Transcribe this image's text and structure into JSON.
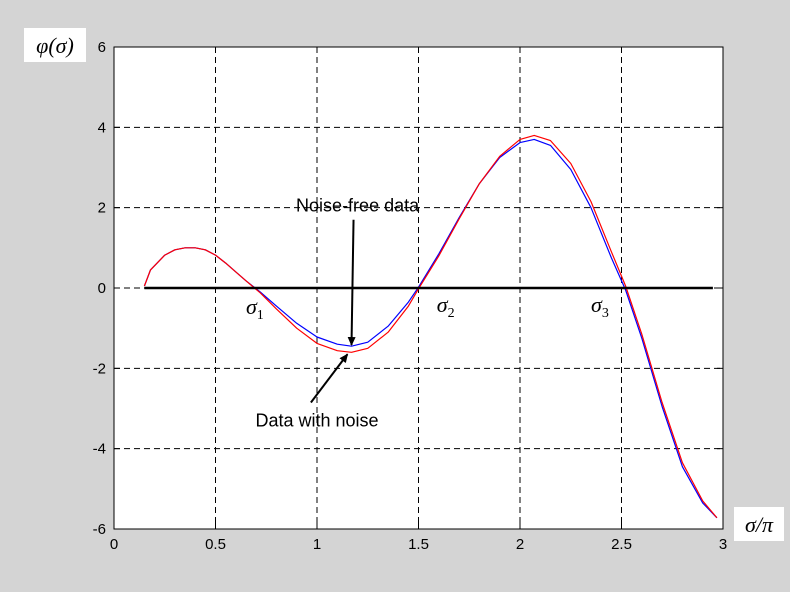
{
  "chart_data": {
    "type": "line",
    "background_color": "#d4d4d4",
    "plot_background": "#ffffff",
    "ylabel": "φ(σ)",
    "xlabel": "σ/π",
    "xlim": [
      0,
      3
    ],
    "ylim": [
      -6,
      6
    ],
    "grid": true,
    "xticks": [
      "0",
      "0.5",
      "1",
      "1.5",
      "2",
      "2.5",
      "3"
    ],
    "yticks": [
      "6",
      "4",
      "2",
      "0",
      "-2",
      "-4",
      "-6"
    ],
    "series": [
      {
        "color": "#0000ff",
        "x": [
          0.15,
          0.18,
          0.25,
          0.3,
          0.35,
          0.4,
          0.45,
          0.5,
          0.55,
          0.6,
          0.65,
          0.72,
          0.8,
          0.9,
          1.0,
          1.1,
          1.17,
          1.25,
          1.35,
          1.45,
          1.5,
          1.6,
          1.7,
          1.8,
          1.9,
          2.0,
          2.07,
          2.15,
          2.25,
          2.35,
          2.45,
          2.52,
          2.6,
          2.7,
          2.8,
          2.9,
          2.97
        ],
        "y": [
          0.05,
          0.45,
          0.82,
          0.95,
          1.0,
          1.0,
          0.95,
          0.82,
          0.62,
          0.4,
          0.18,
          -0.1,
          -0.45,
          -0.88,
          -1.22,
          -1.4,
          -1.45,
          -1.35,
          -0.95,
          -0.35,
          0.02,
          0.85,
          1.75,
          2.6,
          3.25,
          3.62,
          3.7,
          3.55,
          2.95,
          2.0,
          0.75,
          -0.05,
          -1.25,
          -2.95,
          -4.45,
          -5.35,
          -5.72
        ]
      },
      {
        "color": "#ff0000",
        "x": [
          0.15,
          0.18,
          0.25,
          0.3,
          0.35,
          0.4,
          0.45,
          0.5,
          0.55,
          0.6,
          0.65,
          0.72,
          0.8,
          0.9,
          1.0,
          1.1,
          1.17,
          1.25,
          1.35,
          1.45,
          1.5,
          1.6,
          1.7,
          1.8,
          1.9,
          2.0,
          2.07,
          2.15,
          2.25,
          2.35,
          2.45,
          2.52,
          2.6,
          2.7,
          2.8,
          2.9,
          2.97
        ],
        "y": [
          0.05,
          0.45,
          0.82,
          0.95,
          1.0,
          1.0,
          0.95,
          0.82,
          0.62,
          0.4,
          0.18,
          -0.12,
          -0.52,
          -1.0,
          -1.38,
          -1.56,
          -1.6,
          -1.5,
          -1.1,
          -0.45,
          -0.02,
          0.8,
          1.72,
          2.6,
          3.28,
          3.7,
          3.8,
          3.67,
          3.1,
          2.15,
          0.9,
          0.05,
          -1.15,
          -2.85,
          -4.35,
          -5.3,
          -5.72
        ]
      },
      {
        "color": "#000000",
        "x": [
          0.15,
          2.95
        ],
        "y": [
          0,
          0
        ]
      }
    ],
    "annotations": [
      {
        "text": "Noise-free data",
        "label_x": 1.2,
        "label_y": 1.9,
        "arrow_from": [
          1.18,
          1.7
        ],
        "arrow_to": [
          1.17,
          -1.42
        ]
      },
      {
        "text": "Data with noise",
        "label_x": 1.0,
        "label_y": -3.45,
        "arrow_from": [
          0.97,
          -2.85
        ],
        "arrow_to": [
          1.15,
          -1.65
        ]
      }
    ],
    "zero_labels": [
      {
        "base": "σ",
        "sub": "1",
        "x": 0.65,
        "y": -0.65
      },
      {
        "base": "σ",
        "sub": "2",
        "x": 1.59,
        "y": -0.6
      },
      {
        "base": "σ",
        "sub": "3",
        "x": 2.35,
        "y": -0.6
      }
    ]
  }
}
